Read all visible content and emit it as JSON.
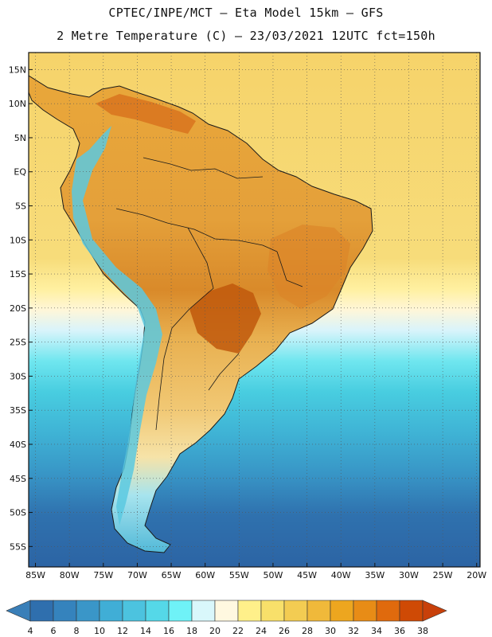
{
  "header": {
    "line1": "CPTEC/INPE/MCT –  Eta Model 15km – GFS",
    "line2": "2 Metre Temperature (C) – 23/03/2021 12UTC fct=150h"
  },
  "map": {
    "lon_range": [
      -86,
      -19.5
    ],
    "lat_range": [
      -58,
      17.5
    ],
    "lon_ticks": [
      "85W",
      "80W",
      "75W",
      "70W",
      "65W",
      "60W",
      "55W",
      "50W",
      "45W",
      "40W",
      "35W",
      "30W",
      "25W",
      "20W"
    ],
    "lon_tick_values": [
      -85,
      -80,
      -75,
      -70,
      -65,
      -60,
      -55,
      -50,
      -45,
      -40,
      -35,
      -30,
      -25,
      -20
    ],
    "lat_ticks": [
      "15N",
      "10N",
      "5N",
      "EQ",
      "5S",
      "10S",
      "15S",
      "20S",
      "25S",
      "30S",
      "35S",
      "40S",
      "45S",
      "50S",
      "55S"
    ],
    "lat_tick_values": [
      15,
      10,
      5,
      0,
      -5,
      -10,
      -15,
      -20,
      -25,
      -30,
      -35,
      -40,
      -45,
      -50,
      -55
    ]
  },
  "colorbar": {
    "labels": [
      "4",
      "6",
      "8",
      "10",
      "12",
      "14",
      "16",
      "18",
      "20",
      "22",
      "24",
      "26",
      "28",
      "30",
      "32",
      "34",
      "36",
      "38"
    ],
    "colors": [
      "#2f6fae",
      "#3583bd",
      "#3a96c8",
      "#40aed6",
      "#4cc3df",
      "#55d8e8",
      "#6ff2f7",
      "#d9f7fb",
      "#fff8e0",
      "#fff08a",
      "#f8e06a",
      "#f3cc52",
      "#f0b93a",
      "#eda61f",
      "#e88c16",
      "#e06a0d",
      "#cf4a05"
    ],
    "under_color": "#3a7fb8",
    "over_color": "#c8400a"
  }
}
